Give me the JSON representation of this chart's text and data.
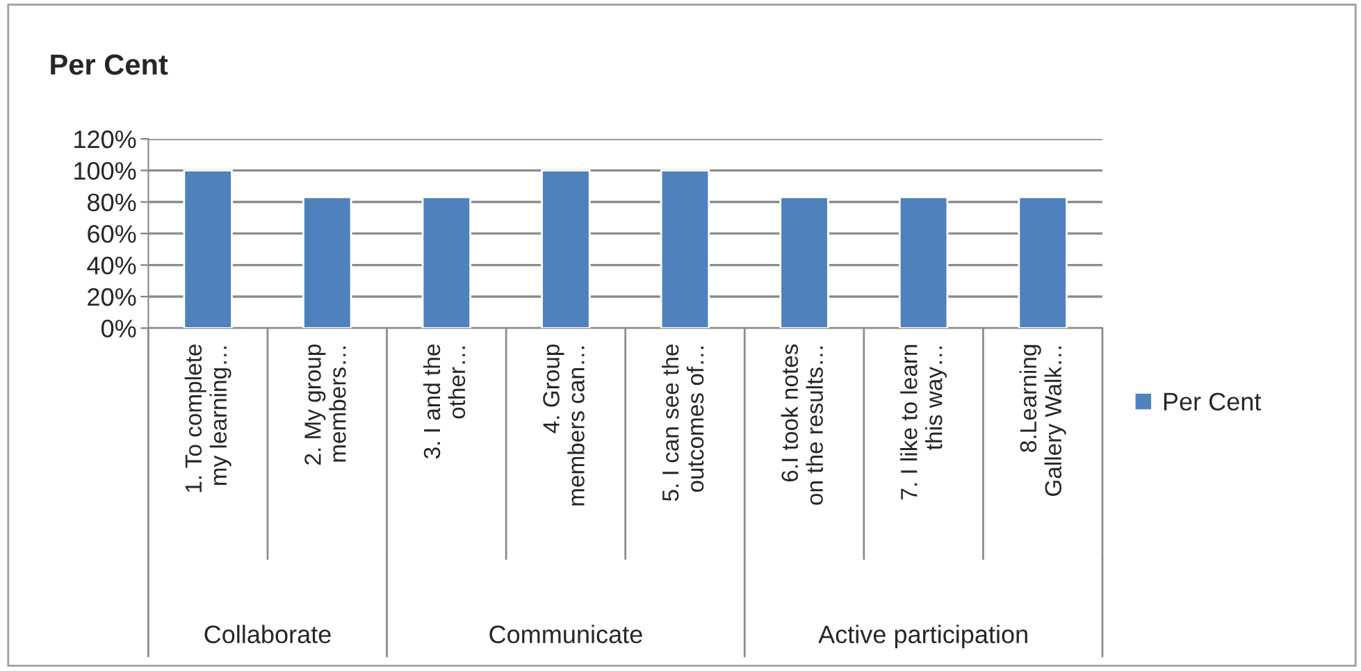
{
  "chart_data": {
    "type": "bar",
    "title": "Per Cent",
    "categories": [
      "1. To complete\nmy learning…",
      "2. My group\nmembers…",
      "3. I and the\nother…",
      "4. Group\nmembers can…",
      "5. I can see the\noutcomes of…",
      "6.I took notes\non the results…",
      "7. I like to learn\nthis way…",
      "8.Learning\nGallery Walk…"
    ],
    "series": [
      {
        "name": "Per Cent",
        "color": "#4f81bd",
        "values": [
          100,
          83,
          83,
          100,
          100,
          83,
          83,
          83
        ]
      }
    ],
    "ylim": [
      0,
      120
    ],
    "yticks": [
      {
        "value": 0,
        "label": "0%"
      },
      {
        "value": 20,
        "label": "20%"
      },
      {
        "value": 40,
        "label": "40%"
      },
      {
        "value": 60,
        "label": "60%"
      },
      {
        "value": 80,
        "label": "80%"
      },
      {
        "value": 100,
        "label": "100%"
      },
      {
        "value": 120,
        "label": "120%"
      }
    ],
    "grid": "y",
    "legend": "right",
    "annotations": [
      "Collaborate",
      "Communicate",
      "Active participation"
    ]
  }
}
